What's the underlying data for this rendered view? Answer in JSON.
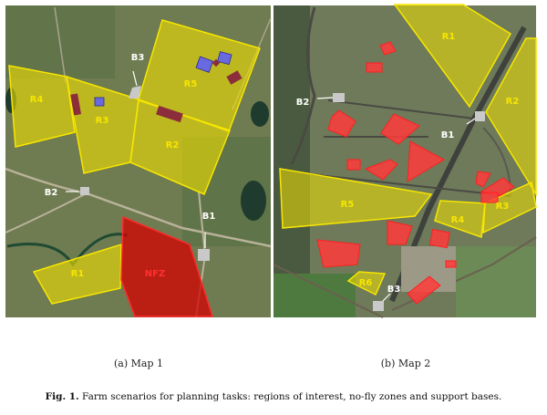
{
  "map1": {
    "regions": [
      {
        "label": "R1",
        "kind": "region"
      },
      {
        "label": "R2",
        "kind": "region"
      },
      {
        "label": "R3",
        "kind": "region"
      },
      {
        "label": "R4",
        "kind": "region"
      },
      {
        "label": "R5",
        "kind": "region"
      },
      {
        "label": "NFZ",
        "kind": "no-fly-zone"
      }
    ],
    "bases": [
      "B1",
      "B2",
      "B3"
    ]
  },
  "map2": {
    "regions": [
      {
        "label": "R1"
      },
      {
        "label": "R2"
      },
      {
        "label": "R3"
      },
      {
        "label": "R4"
      },
      {
        "label": "R5"
      },
      {
        "label": "R6"
      }
    ],
    "bases": [
      "B1",
      "B2",
      "B3"
    ]
  },
  "subcaptions": {
    "a": "(a) Map 1",
    "b": "(b) Map 2"
  },
  "caption": {
    "label": "Fig. 1.",
    "text": " Farm scenarios for planning tasks: regions of interest, no-fly zones and support bases."
  },
  "colors": {
    "region": "#f2e100",
    "no_fly_zone": "#d40000",
    "obstacle_red": "#ff3b3b",
    "obstacle_blue": "#6a6ae0",
    "obstacle_maroon": "#8b2d3a",
    "base_text": "#ffffff"
  }
}
